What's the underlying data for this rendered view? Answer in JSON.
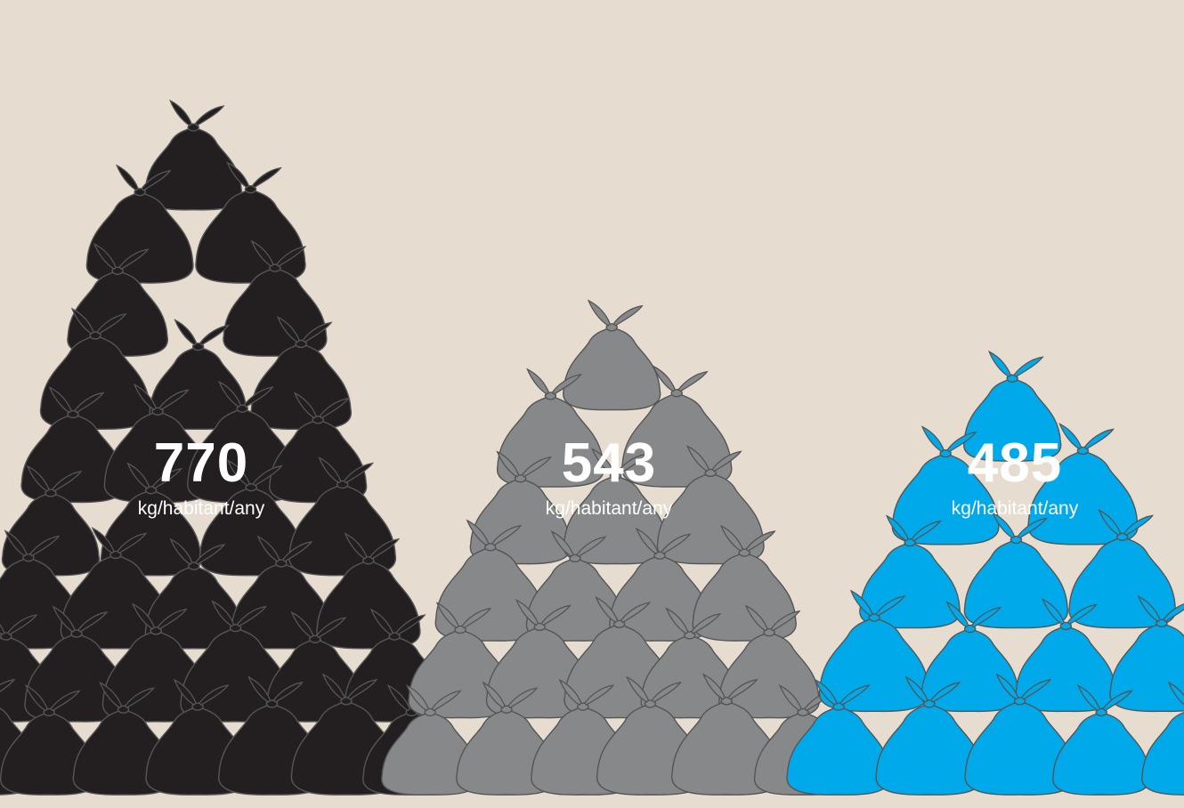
{
  "chart_data": {
    "type": "bar",
    "categories": [
      "",
      "",
      ""
    ],
    "values": [
      770,
      543,
      485
    ],
    "unit": "kg/habitant/any",
    "title": "",
    "xlabel": "",
    "ylabel": "",
    "series_colors": [
      "#231f20",
      "#87888a",
      "#00aaea"
    ],
    "outline_color": "#555555",
    "background": "#e6ddd0"
  },
  "labels": [
    {
      "value": "770",
      "unit": "kg/habitant/any"
    },
    {
      "value": "543",
      "unit": "kg/habitant/any"
    },
    {
      "value": "485",
      "unit": "kg/habitant/any"
    }
  ]
}
